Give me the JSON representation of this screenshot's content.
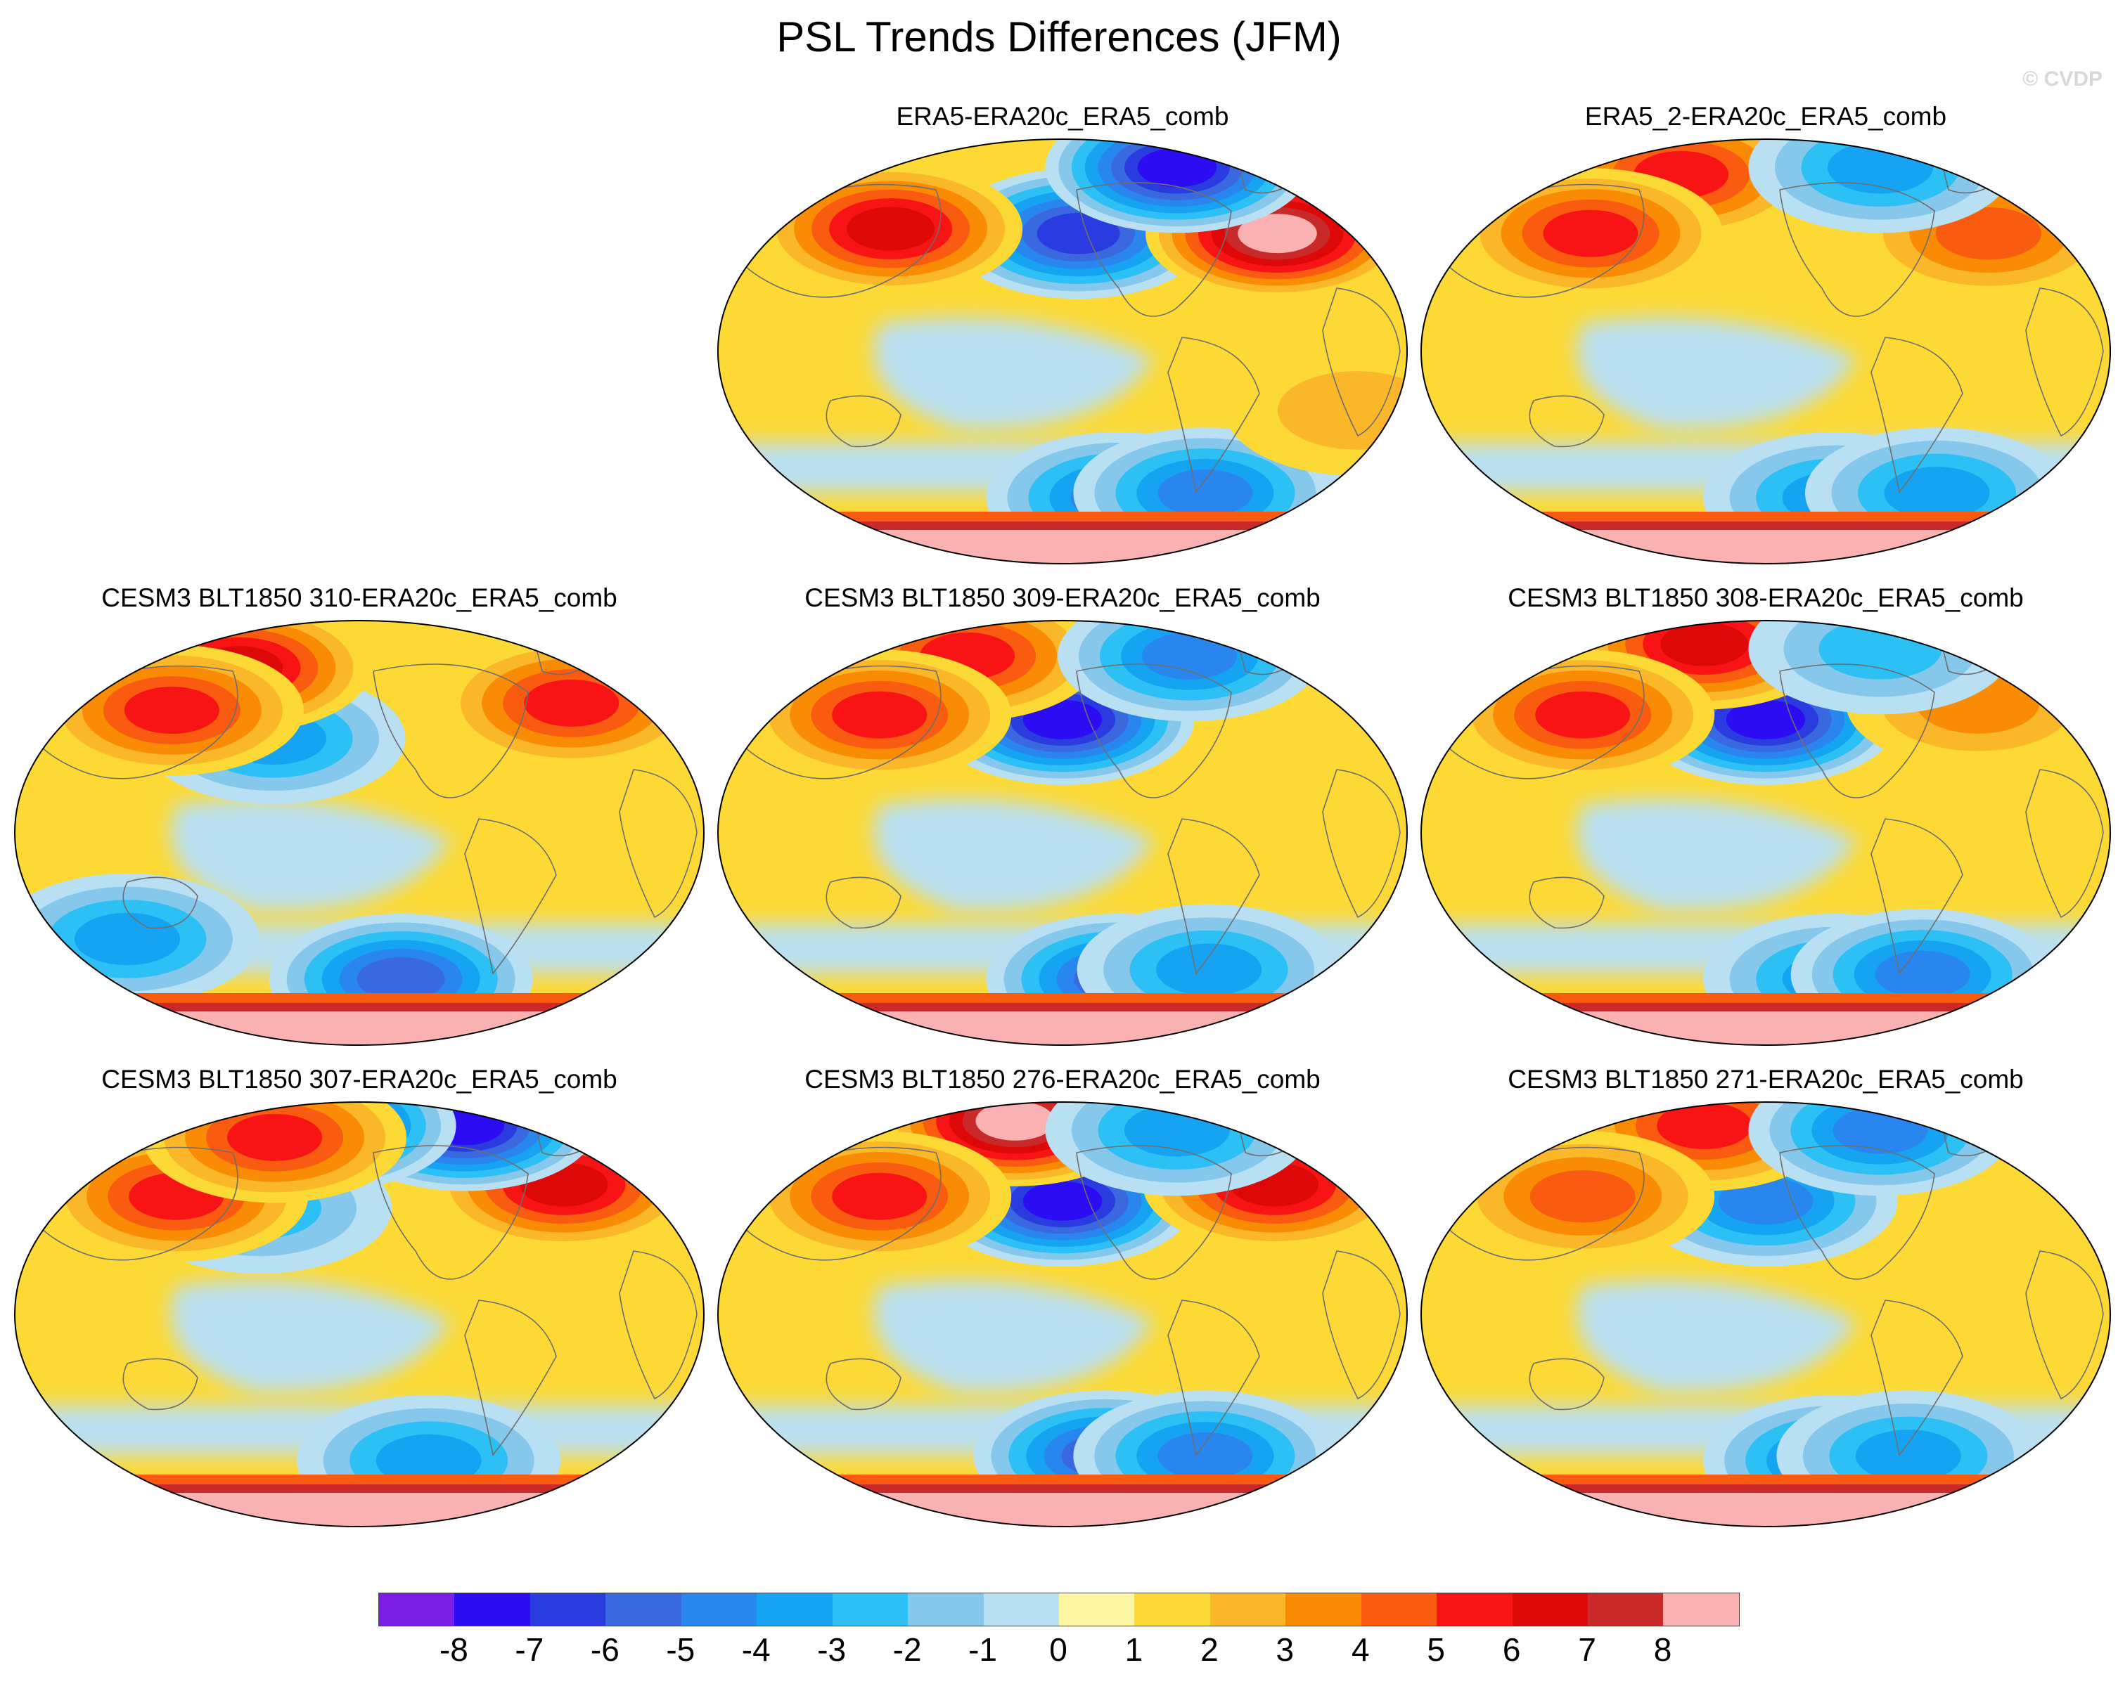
{
  "title": "PSL Trends Differences (JFM)",
  "watermark": "© CVDP",
  "colors": {
    "land_outline": "#6e6e6e",
    "scale": [
      "#7b1fe6",
      "#2c0cf2",
      "#2a3be0",
      "#3a68df",
      "#2a86ef",
      "#16a4f2",
      "#2cc0f4",
      "#86c7ec",
      "#b9e0f2",
      "#fdf7a3",
      "#fcd935",
      "#fbb72a",
      "#fa8c05",
      "#f95b10",
      "#f81414",
      "#dd0808",
      "#c92929",
      "#f9b1b1"
    ]
  },
  "colorbar": {
    "labels": [
      "-8",
      "-7",
      "-6",
      "-5",
      "-4",
      "-3",
      "-2",
      "-1",
      "0",
      "1",
      "2",
      "3",
      "4",
      "5",
      "6",
      "7",
      "8"
    ]
  },
  "panels": [
    {
      "title": "ERA5-ERA20c_ERA5_comb",
      "features": [
        {
          "lon": -150,
          "lat": 50,
          "value": -7
        },
        {
          "lon": 90,
          "lat": 52,
          "value": 6
        },
        {
          "lon": -25,
          "lat": 50,
          "value": 8
        },
        {
          "lon": -40,
          "lat": 78,
          "value": -8
        },
        {
          "lon": -120,
          "lat": -62,
          "value": -5
        },
        {
          "lon": -60,
          "lat": -60,
          "value": -5
        },
        {
          "lon": 0,
          "lat": -25,
          "value": 2
        }
      ]
    },
    {
      "title": "ERA5_2-ERA20c_ERA5_comb",
      "features": [
        {
          "lon": 120,
          "lat": 75,
          "value": 5
        },
        {
          "lon": -20,
          "lat": 50,
          "value": 4
        },
        {
          "lon": 90,
          "lat": 50,
          "value": 5
        },
        {
          "lon": -40,
          "lat": 78,
          "value": -4
        },
        {
          "lon": -110,
          "lat": -62,
          "value": -4
        },
        {
          "lon": -40,
          "lat": -60,
          "value": -4
        }
      ]
    },
    {
      "title": "CESM3 BLT1850 310-ERA20c_ERA5_comb",
      "features": [
        {
          "lon": 150,
          "lat": 40,
          "value": -4
        },
        {
          "lon": 100,
          "lat": 70,
          "value": 6
        },
        {
          "lon": -20,
          "lat": 55,
          "value": 5
        },
        {
          "lon": 80,
          "lat": 52,
          "value": 5
        },
        {
          "lon": -130,
          "lat": -62,
          "value": -6
        },
        {
          "lon": 60,
          "lat": -45,
          "value": -4
        }
      ]
    },
    {
      "title": "CESM3 BLT1850 309-ERA20c_ERA5_comb",
      "features": [
        {
          "lon": -160,
          "lat": 48,
          "value": -8
        },
        {
          "lon": 110,
          "lat": 75,
          "value": 5
        },
        {
          "lon": 85,
          "lat": 50,
          "value": 5
        },
        {
          "lon": -40,
          "lat": 75,
          "value": -5
        },
        {
          "lon": -120,
          "lat": -62,
          "value": -6
        },
        {
          "lon": -60,
          "lat": -58,
          "value": -4
        }
      ]
    },
    {
      "title": "CESM3 BLT1850 308-ERA20c_ERA5_comb",
      "features": [
        {
          "lon": -160,
          "lat": 48,
          "value": -8
        },
        {
          "lon": 130,
          "lat": 80,
          "value": 6
        },
        {
          "lon": 85,
          "lat": 50,
          "value": 5
        },
        {
          "lon": -20,
          "lat": 55,
          "value": 3
        },
        {
          "lon": -40,
          "lat": 78,
          "value": -3
        },
        {
          "lon": -110,
          "lat": -62,
          "value": -4
        },
        {
          "lon": -50,
          "lat": -60,
          "value": -5
        }
      ]
    },
    {
      "title": "CESM3 BLT1850 307-ERA20c_ERA5_comb",
      "features": [
        {
          "lon": 140,
          "lat": 45,
          "value": -3
        },
        {
          "lon": -25,
          "lat": 55,
          "value": 6
        },
        {
          "lon": 85,
          "lat": 50,
          "value": 5
        },
        {
          "lon": -40,
          "lat": 80,
          "value": -8
        },
        {
          "lon": 160,
          "lat": 80,
          "value": -7
        },
        {
          "lon": -110,
          "lat": -62,
          "value": -4
        },
        {
          "lon": 120,
          "lat": 75,
          "value": 5
        }
      ]
    },
    {
      "title": "CESM3 BLT1850 276-ERA20c_ERA5_comb",
      "features": [
        {
          "lon": -160,
          "lat": 48,
          "value": -8
        },
        {
          "lon": 140,
          "lat": 82,
          "value": 8
        },
        {
          "lon": -20,
          "lat": 55,
          "value": 6
        },
        {
          "lon": 85,
          "lat": 50,
          "value": 5
        },
        {
          "lon": -40,
          "lat": 78,
          "value": -4
        },
        {
          "lon": -130,
          "lat": -60,
          "value": -6
        },
        {
          "lon": -60,
          "lat": -60,
          "value": -5
        }
      ]
    },
    {
      "title": "CESM3 BLT1850 271-ERA20c_ERA5_comb",
      "features": [
        {
          "lon": -160,
          "lat": 48,
          "value": -5
        },
        {
          "lon": 130,
          "lat": 80,
          "value": 5
        },
        {
          "lon": -40,
          "lat": 78,
          "value": -5
        },
        {
          "lon": 85,
          "lat": 50,
          "value": 4
        },
        {
          "lon": -110,
          "lat": -62,
          "value": -5
        },
        {
          "lon": -60,
          "lat": -60,
          "value": -4
        }
      ]
    }
  ]
}
